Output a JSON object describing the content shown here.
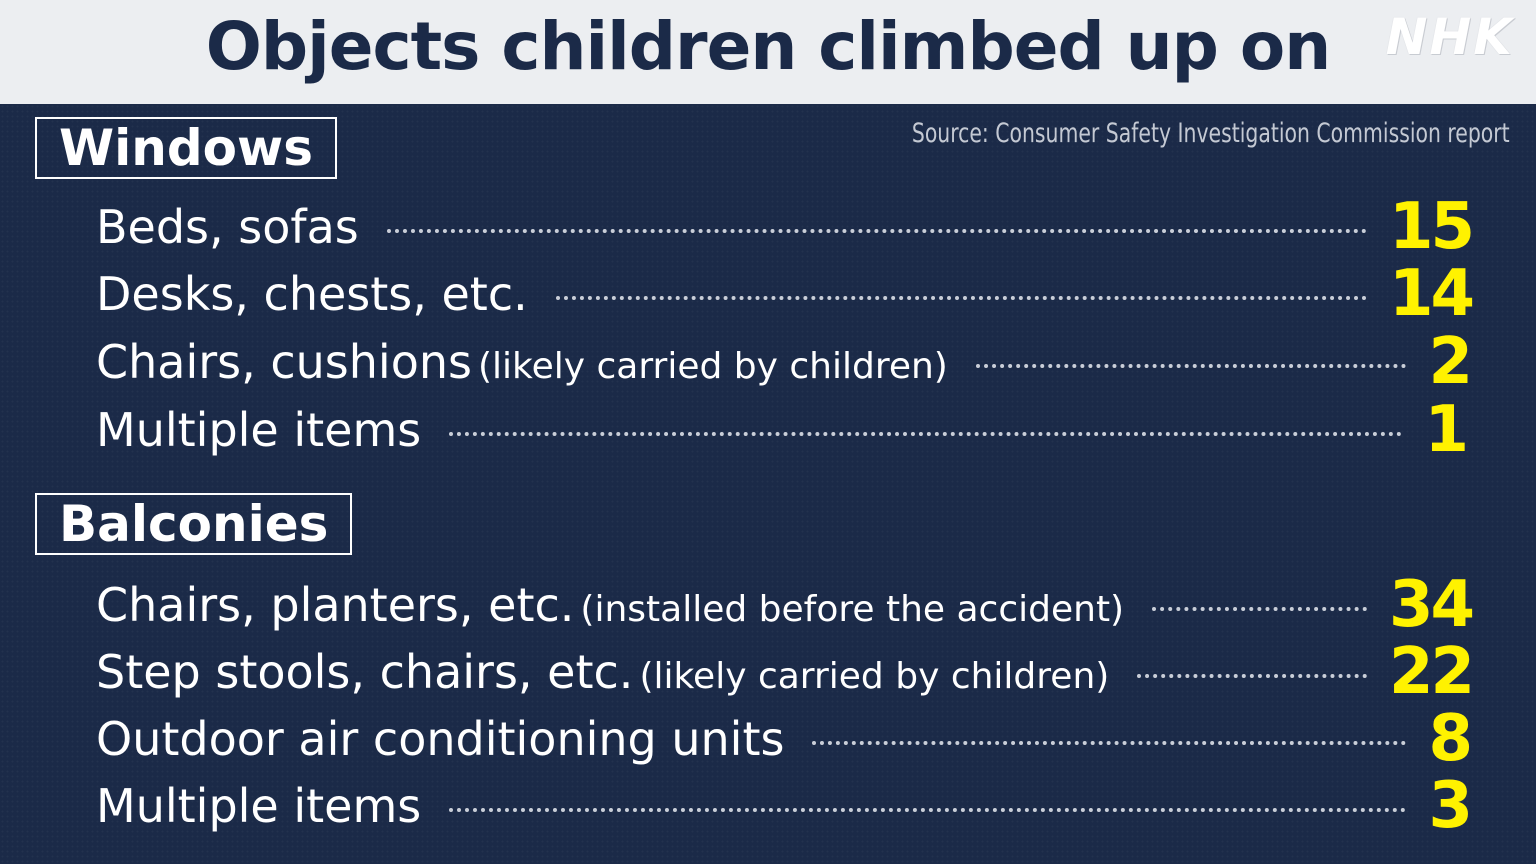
{
  "title": "Objects children climbed up on",
  "logo": "NHK",
  "source": "Source: Consumer Safety Investigation Commission report",
  "colors": {
    "background": "#1b2a48",
    "header": "#eceef1",
    "count": "#fff200"
  },
  "sections": [
    {
      "label": "Windows",
      "rows": [
        {
          "label": "Beds, sofas",
          "note": "",
          "count": "15"
        },
        {
          "label": "Desks, chests, etc.",
          "note": "",
          "count": "14"
        },
        {
          "label": "Chairs, cushions",
          "note": "(likely carried by children)",
          "count": "2"
        },
        {
          "label": "Multiple items",
          "note": "",
          "count": "1"
        }
      ]
    },
    {
      "label": "Balconies",
      "rows": [
        {
          "label": "Chairs, planters, etc.",
          "note": "(installed before the accident)",
          "count": "34"
        },
        {
          "label": "Step stools, chairs, etc.",
          "note": "(likely carried by children)",
          "count": "22"
        },
        {
          "label": "Outdoor air conditioning units",
          "note": "",
          "count": "8"
        },
        {
          "label": "Multiple items",
          "note": "",
          "count": "3"
        }
      ]
    }
  ]
}
